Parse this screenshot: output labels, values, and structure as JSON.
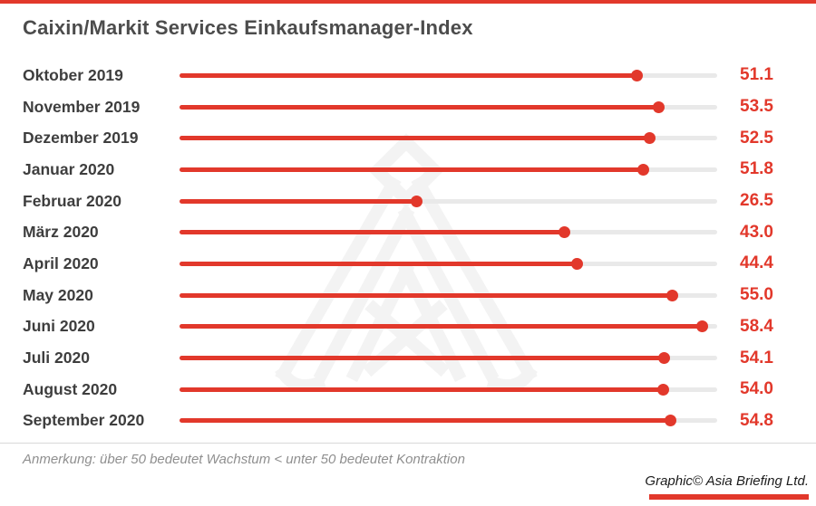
{
  "header": {
    "title": "Caixin/Markit Services Einkaufsmanager-Index"
  },
  "colors": {
    "accent_red": "#e2382b",
    "track_gray": "#e9e9e9",
    "label_gray": "#3e3e3e",
    "watermark_gray": "#f3f3f3"
  },
  "chart_data": {
    "type": "bar",
    "style": "lollipop",
    "orientation": "horizontal",
    "title": "Caixin/Markit Services Einkaufsmanager-Index",
    "categories": [
      "Oktober 2019",
      "November 2019",
      "Dezember 2019",
      "Januar 2020",
      "Februar 2020",
      "März 2020",
      "April 2020",
      "May 2020",
      "Juni 2020",
      "Juli 2020",
      "August 2020",
      "September 2020"
    ],
    "values": [
      51.1,
      53.5,
      52.5,
      51.8,
      26.5,
      43.0,
      44.4,
      55.0,
      58.4,
      54.1,
      54.0,
      54.8
    ],
    "xlabel": "",
    "ylabel": "",
    "xlim": [
      0,
      60
    ],
    "axis_visible": false,
    "grid": false,
    "legend": false,
    "value_labels_position": "right",
    "bar_color": "#e2382b",
    "track_color": "#e9e9e9"
  },
  "footer": {
    "note": "Anmerkung: über 50 bedeutet Wachstum < unter 50 bedeutet Kontraktion",
    "credit": "Graphic© Asia Briefing Ltd."
  },
  "watermark": {
    "name": "asia-briefing-logo"
  }
}
